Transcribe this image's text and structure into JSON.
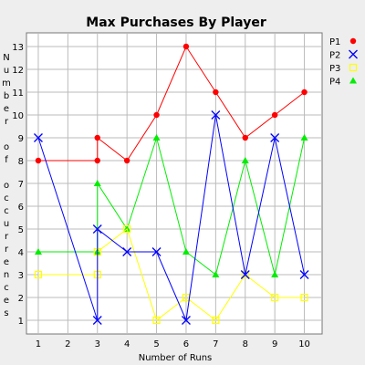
{
  "chart_data": {
    "type": "line",
    "title": "Max Purchases By Player",
    "xlabel": "Number of Runs",
    "ylabel": "Number of occurrences",
    "xlim": [
      0.6,
      10.6
    ],
    "ylim": [
      0.4,
      13.6
    ],
    "xticks": [
      1,
      2,
      3,
      4,
      5,
      6,
      7,
      8,
      9,
      10
    ],
    "yticks": [
      1,
      2,
      3,
      4,
      5,
      6,
      7,
      8,
      9,
      10,
      11,
      12,
      13
    ],
    "grid": true,
    "legend_position": "right",
    "series": [
      {
        "name": "P1",
        "color": "#ff0000",
        "marker": "circle",
        "points": [
          [
            1,
            8
          ],
          [
            3,
            8
          ],
          [
            3,
            9
          ],
          [
            4,
            8
          ],
          [
            5,
            10
          ],
          [
            6,
            13
          ],
          [
            7,
            11
          ],
          [
            8,
            9
          ],
          [
            9,
            10
          ],
          [
            10,
            11
          ]
        ]
      },
      {
        "name": "P2",
        "color": "#0000ff",
        "marker": "x",
        "points": [
          [
            1,
            9
          ],
          [
            3,
            1
          ],
          [
            3,
            5
          ],
          [
            4,
            4
          ],
          [
            5,
            4
          ],
          [
            6,
            1
          ],
          [
            7,
            10
          ],
          [
            8,
            3
          ],
          [
            9,
            9
          ],
          [
            10,
            3
          ]
        ]
      },
      {
        "name": "P3",
        "color": "#ffff00",
        "marker": "square",
        "points": [
          [
            1,
            3
          ],
          [
            3,
            3
          ],
          [
            3,
            4
          ],
          [
            4,
            5
          ],
          [
            5,
            1
          ],
          [
            6,
            2
          ],
          [
            7,
            1
          ],
          [
            8,
            3
          ],
          [
            9,
            2
          ],
          [
            10,
            2
          ]
        ]
      },
      {
        "name": "P4",
        "color": "#00ee00",
        "marker": "triangle",
        "points": [
          [
            1,
            4
          ],
          [
            3,
            4
          ],
          [
            3,
            7
          ],
          [
            4,
            5
          ],
          [
            5,
            9
          ],
          [
            6,
            4
          ],
          [
            7,
            3
          ],
          [
            8,
            8
          ],
          [
            9,
            3
          ],
          [
            10,
            9
          ]
        ]
      }
    ]
  }
}
